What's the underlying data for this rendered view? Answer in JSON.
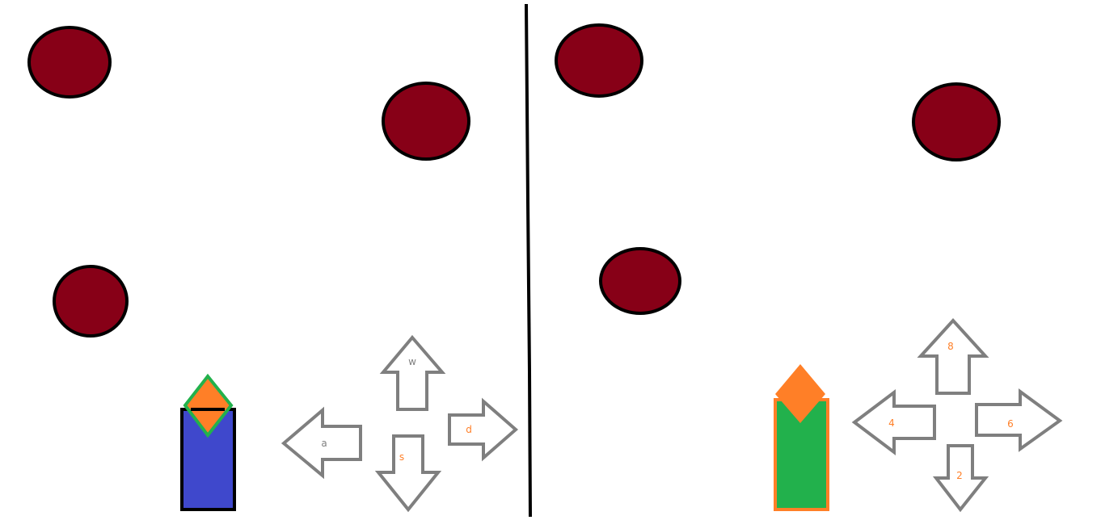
{
  "colors": {
    "background": "#ffffff",
    "ball_fill": "#870017",
    "outline": "#000000",
    "arrow_stroke": "#7f7f7f",
    "player1_body": "#3f48cc",
    "player1_gem": "#ff7f27",
    "player1_gem_outline": "#22b14c",
    "player2_body": "#22b14c",
    "player2_body_outline": "#ff7f27",
    "player2_gem": "#ff7f27",
    "label_gray": "#7f7f7f",
    "label_orange": "#ff7f27"
  },
  "player1": {
    "controls": {
      "up": "w",
      "left": "a",
      "down": "s",
      "right": "d"
    }
  },
  "player2": {
    "controls": {
      "up": "8",
      "left": "4",
      "down": "2",
      "right": "6"
    }
  }
}
